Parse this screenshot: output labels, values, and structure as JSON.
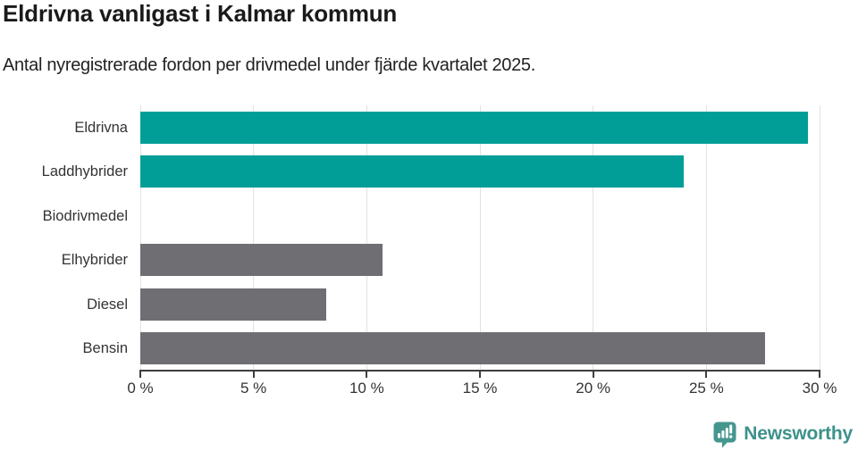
{
  "header": {
    "title": "Eldrivna vanligast i Kalmar kommun",
    "subtitle": "Antal nyregistrerade fordon per drivmedel under fjärde kvartalet 2025."
  },
  "chart_data": {
    "type": "bar",
    "orientation": "horizontal",
    "title": "Eldrivna vanligast i Kalmar kommun",
    "subtitle": "Antal nyregistrerade fordon per drivmedel under fjärde kvartalet 2025.",
    "categories": [
      "Eldrivna",
      "Laddhybrider",
      "Biodrivmedel",
      "Elhybrider",
      "Diesel",
      "Bensin"
    ],
    "values": [
      29.5,
      24.0,
      0,
      10.7,
      8.2,
      27.6
    ],
    "unit": "%",
    "bar_colors": [
      "#009e97",
      "#009e97",
      "#009e97",
      "#6e6e73",
      "#6e6e73",
      "#6e6e73"
    ],
    "xlabel": "",
    "ylabel": "",
    "xlim": [
      0,
      30
    ],
    "x_ticks": [
      0,
      5,
      10,
      15,
      20,
      25,
      30
    ],
    "x_tick_labels": [
      "0 %",
      "5 %",
      "10 %",
      "15 %",
      "20 %",
      "25 %",
      "30 %"
    ],
    "grid": "vertical-gridlines-on",
    "legend": "none"
  },
  "colors": {
    "accent_teal": "#009e97",
    "bar_gray": "#6e6e73",
    "gridline": "#e2e2e2",
    "axis": "#3f3f3f",
    "text": "#333333",
    "brand_teal": "#3e918b",
    "brand_icon_teal": "#45968f"
  },
  "footer": {
    "brand": "Newsworthy",
    "logo_icon": "newsworthy-speech-bubble-bar-chart-icon"
  }
}
